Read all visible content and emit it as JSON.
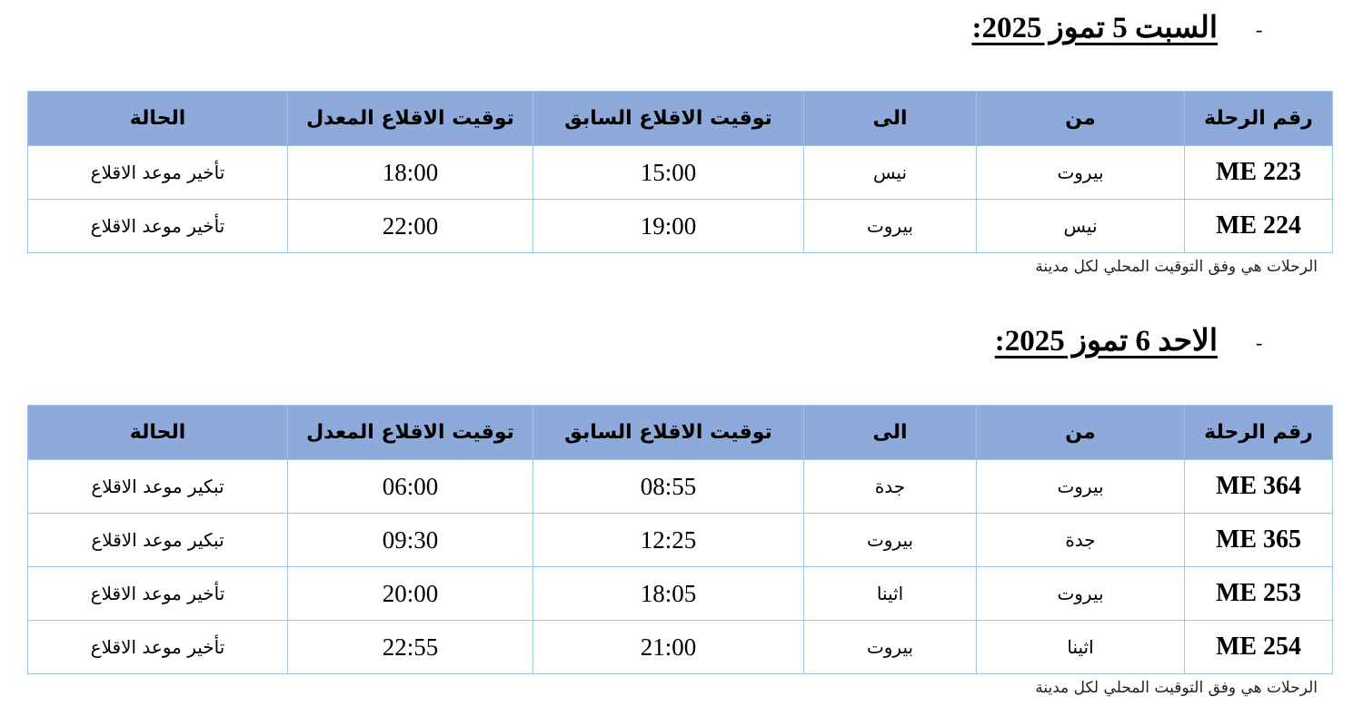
{
  "columns": [
    "رقم الرحلة",
    "من",
    "الى",
    "توقيت الاقلاع السابق",
    "توقيت الاقلاع المعدل",
    "الحالة"
  ],
  "bullet": "-",
  "sections": [
    {
      "title": "السبت 5 تموز 2025:",
      "rows": [
        {
          "flight": "ME 223",
          "from": "بيروت",
          "to": "نيس",
          "previous": "15:00",
          "new": "18:00",
          "status": "تأخير موعد الاقلاع"
        },
        {
          "flight": "ME 224",
          "from": "نيس",
          "to": "بيروت",
          "previous": "19:00",
          "new": "22:00",
          "status": "تأخير موعد الاقلاع"
        }
      ],
      "note": "الرحلات هي وفق التوقيت المحلي لكل مدينة"
    },
    {
      "title": "الاحد 6 تموز 2025:",
      "rows": [
        {
          "flight": "ME 364",
          "from": "بيروت",
          "to": "جدة",
          "previous": "08:55",
          "new": "06:00",
          "status": "تبكير موعد الاقلاع"
        },
        {
          "flight": "ME 365",
          "from": "جدة",
          "to": "بيروت",
          "previous": "12:25",
          "new": "09:30",
          "status": "تبكير موعد الاقلاع"
        },
        {
          "flight": "ME 253",
          "from": "بيروت",
          "to": "اثينا",
          "previous": "18:05",
          "new": "20:00",
          "status": "تأخير موعد الاقلاع"
        },
        {
          "flight": "ME 254",
          "from": "اثينا",
          "to": "بيروت",
          "previous": "21:00",
          "new": "22:55",
          "status": "تأخير موعد الاقلاع"
        }
      ],
      "note": "الرحلات هي وفق التوقيت المحلي لكل مدينة"
    }
  ],
  "colors": {
    "header_bg": "#8eaadb",
    "border": "#9dc3e6"
  }
}
